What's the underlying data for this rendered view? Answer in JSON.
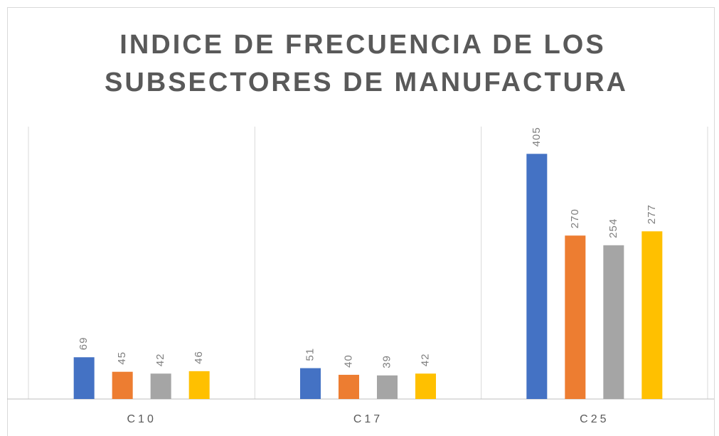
{
  "chart_data": {
    "type": "bar",
    "title": [
      "INDICE DE FRECUENCIA DE LOS",
      "SUBSECTORES DE MANUFACTURA"
    ],
    "categories": [
      "C10",
      "C17",
      "C25"
    ],
    "series": [
      {
        "color": "#4472c4",
        "values": [
          69,
          51,
          405
        ]
      },
      {
        "color": "#ed7d31",
        "values": [
          45,
          40,
          270
        ]
      },
      {
        "color": "#a5a5a5",
        "values": [
          42,
          39,
          254
        ]
      },
      {
        "color": "#ffc000",
        "values": [
          46,
          42,
          277
        ]
      }
    ],
    "ylim": [
      0,
      450
    ]
  }
}
